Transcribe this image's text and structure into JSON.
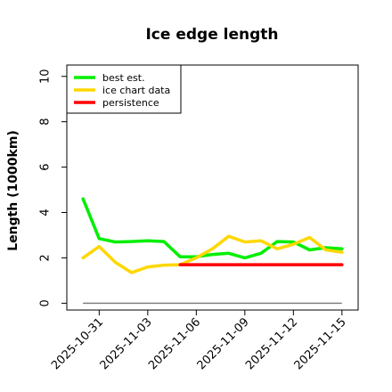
{
  "chart_data": {
    "type": "line",
    "title": "Ice edge length",
    "xlabel": "",
    "ylabel": "Length (1000km)",
    "ylim": [
      -0.3,
      10.5
    ],
    "yticks": [
      0,
      2,
      4,
      6,
      8,
      10
    ],
    "xticks": [
      "2025-10-31",
      "2025-11-03",
      "2025-11-06",
      "2025-11-09",
      "2025-11-12",
      "2025-11-15"
    ],
    "x": [
      "2025-10-30",
      "2025-10-31",
      "2025-11-01",
      "2025-11-02",
      "2025-11-03",
      "2025-11-04",
      "2025-11-05",
      "2025-11-06",
      "2025-11-07",
      "2025-11-08",
      "2025-11-09",
      "2025-11-10",
      "2025-11-11",
      "2025-11-12",
      "2025-11-13",
      "2025-11-14",
      "2025-11-15"
    ],
    "xlim": [
      "2025-10-29",
      "2025-11-16"
    ],
    "legend_position": "top-left",
    "grid": false,
    "series": [
      {
        "name": "best est.",
        "color": "#00ee00",
        "values": [
          4.6,
          2.85,
          2.7,
          2.72,
          2.75,
          2.72,
          2.05,
          2.05,
          2.15,
          2.2,
          2.0,
          2.2,
          2.72,
          2.7,
          2.35,
          2.45,
          2.4
        ]
      },
      {
        "name": "ice chart data",
        "color": "#ffd700",
        "values": [
          2.0,
          2.5,
          1.8,
          1.35,
          1.6,
          1.68,
          1.7,
          2.0,
          2.4,
          2.95,
          2.7,
          2.75,
          2.4,
          2.6,
          2.9,
          2.35,
          2.25
        ]
      },
      {
        "name": "persistence",
        "color": "#ff0000",
        "values": [
          null,
          null,
          null,
          null,
          null,
          null,
          1.7,
          1.7,
          1.7,
          1.7,
          1.7,
          1.7,
          1.7,
          1.7,
          1.7,
          1.7,
          1.7
        ]
      }
    ],
    "reference_line": {
      "value": 0,
      "color": "#808080"
    }
  }
}
